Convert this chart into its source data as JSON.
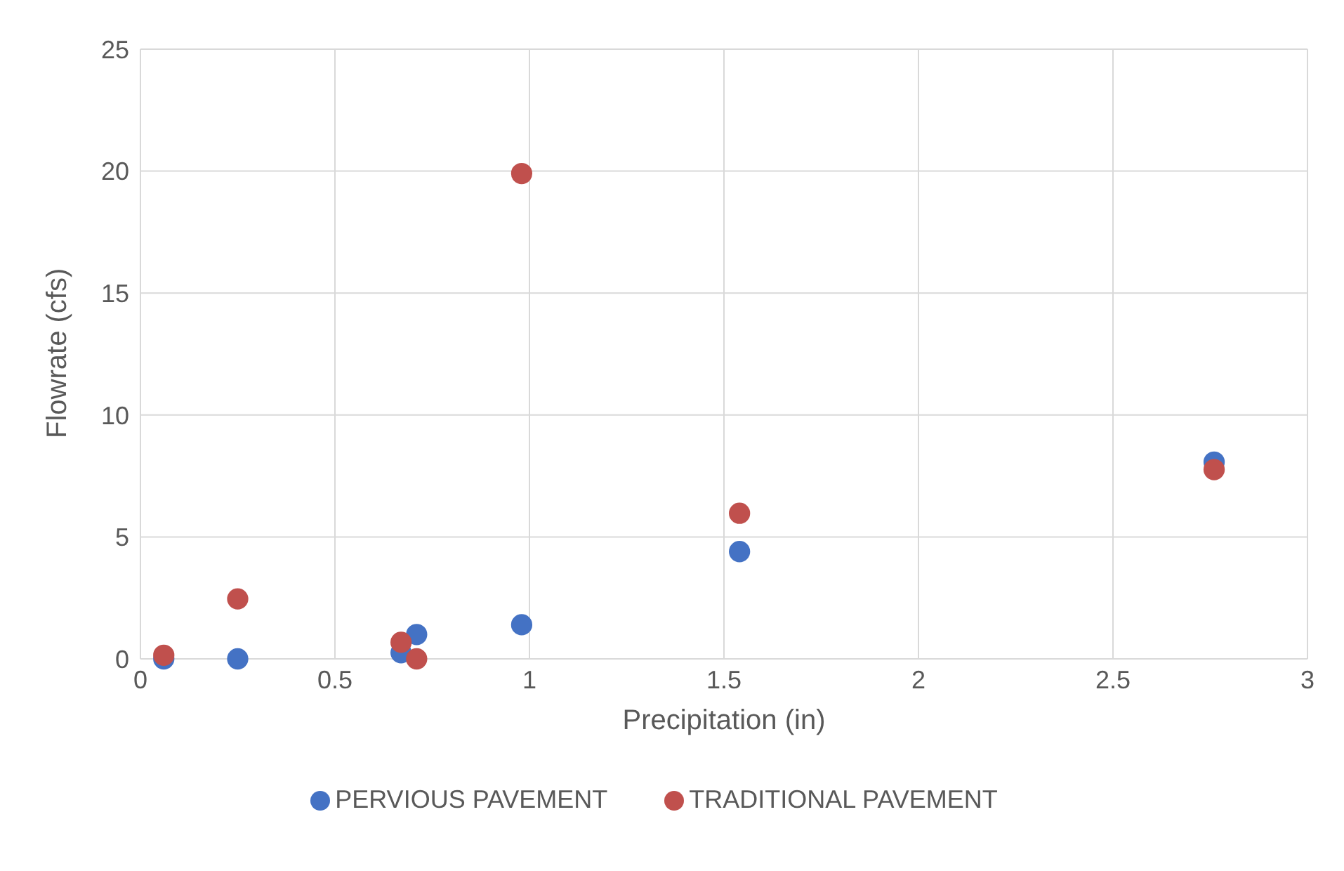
{
  "chart_data": {
    "type": "scatter",
    "xlabel": "Precipitation (in)",
    "ylabel": "Flowrate (cfs)",
    "xlim": [
      0,
      3
    ],
    "xticks": [
      0,
      0.5,
      1,
      1.5,
      2,
      2.5,
      3
    ],
    "ylim": [
      0,
      25
    ],
    "yticks": [
      0,
      5,
      10,
      15,
      20,
      25
    ],
    "grid": true,
    "legend": "bottom",
    "marker": "circle",
    "series": [
      {
        "name": "PERVIOUS PAVEMENT",
        "color": "#4472c4",
        "x": [
          0.06,
          0.25,
          0.67,
          0.71,
          0.98,
          1.54,
          2.76
        ],
        "values": [
          0,
          0,
          0.25,
          1.0,
          1.4,
          4.4,
          8.07
        ]
      },
      {
        "name": "TRADITIONAL PAVEMENT",
        "color": "#c0504d",
        "x": [
          0.06,
          0.25,
          0.67,
          0.71,
          0.98,
          1.54,
          2.76
        ],
        "values": [
          0.15,
          2.46,
          0.68,
          0,
          19.9,
          5.97,
          7.76
        ]
      }
    ]
  }
}
